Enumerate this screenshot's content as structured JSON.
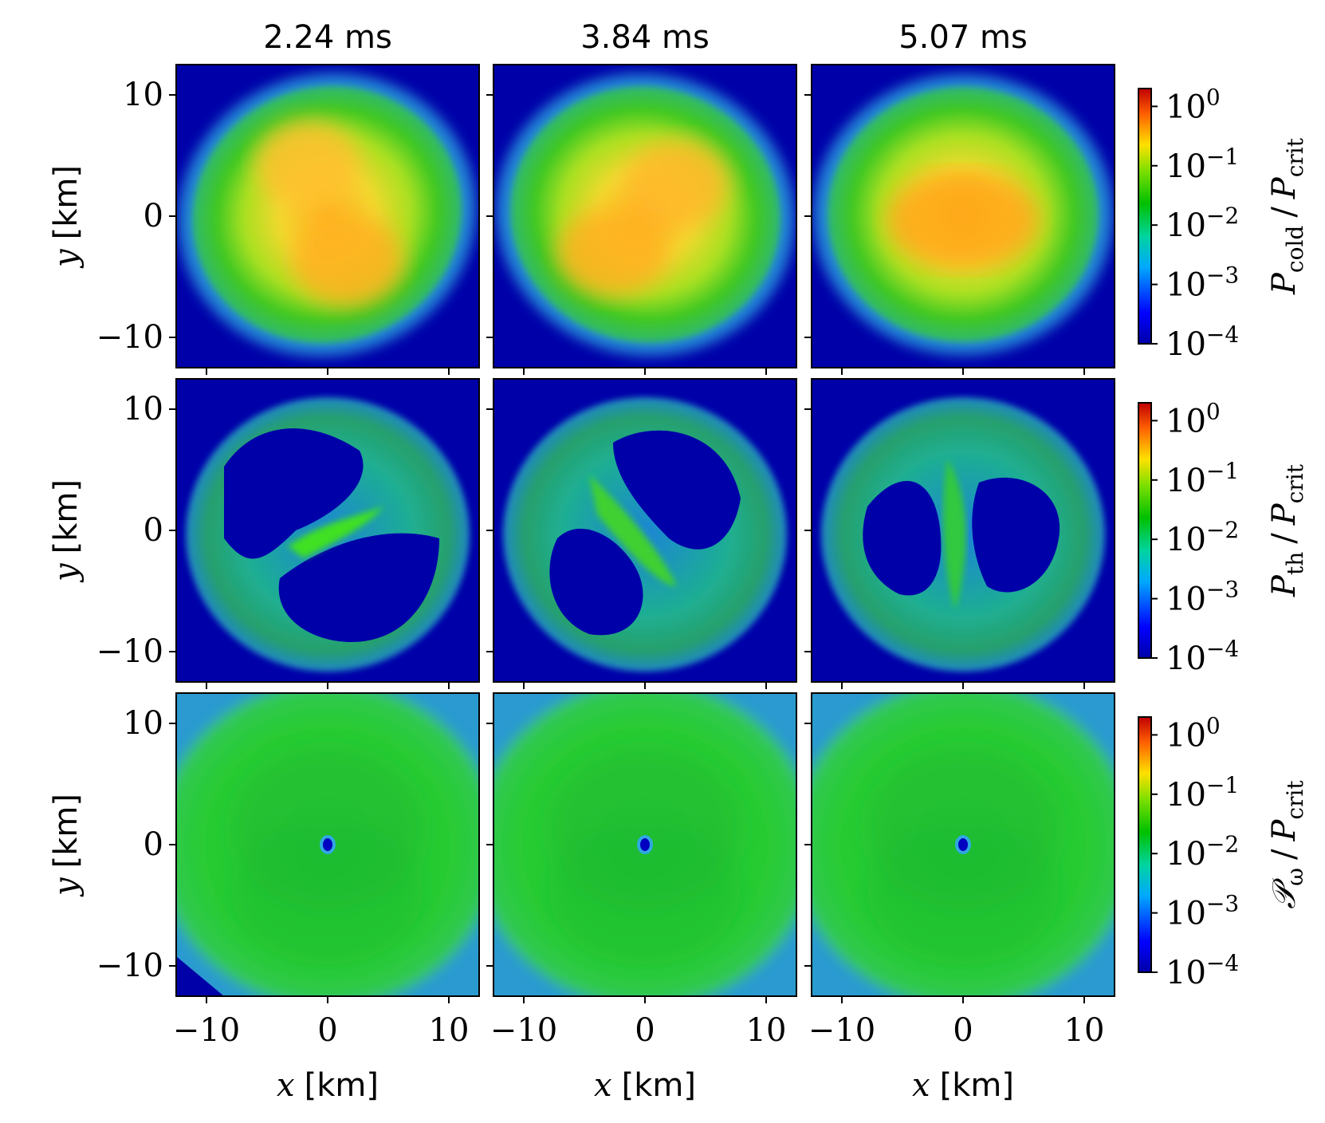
{
  "chart_data": {
    "type": "heatmap",
    "column_titles": [
      "2.24 ms",
      "3.84 ms",
      "5.07 ms"
    ],
    "rows": [
      {
        "colorbar_label": "P_cold / P_crit",
        "colorbar_label_main": "P",
        "colorbar_label_sub": "cold",
        "colorbar_label_den": "P",
        "colorbar_label_den_sub": "crit"
      },
      {
        "colorbar_label": "P_th / P_crit",
        "colorbar_label_main": "P",
        "colorbar_label_sub": "th",
        "colorbar_label_den": "P",
        "colorbar_label_den_sub": "crit"
      },
      {
        "colorbar_label": "𝒫_ω / P_crit",
        "colorbar_label_main": "𝒫",
        "colorbar_label_sub": "ω",
        "colorbar_label_den": "P",
        "colorbar_label_den_sub": "crit"
      }
    ],
    "xlabel": "x [km]",
    "xlabel_var": "x",
    "xlabel_unit": "[km]",
    "ylabel": "y [km]",
    "ylabel_var": "y",
    "ylabel_unit": "[km]",
    "xlim": [
      -12.5,
      12.5
    ],
    "ylim": [
      -12.5,
      12.5
    ],
    "ticks": [
      -10,
      0,
      10
    ],
    "tick_labels": [
      "−10",
      "0",
      "10"
    ],
    "colorbar": {
      "scale": "log",
      "range": [
        0.0001,
        2
      ],
      "colormap": "jet",
      "ticks": [
        0.0001,
        0.001,
        0.01,
        0.1,
        1
      ],
      "tick_exponents": [
        "−4",
        "−3",
        "−2",
        "−1",
        "0"
      ],
      "tick_base": "10"
    },
    "panels": [
      {
        "row": 0,
        "col": 0,
        "time": "2.24 ms",
        "structure": "two-lobed core",
        "core_level": 0.12,
        "envelope_level": 0.003
      },
      {
        "row": 0,
        "col": 1,
        "time": "3.84 ms",
        "structure": "two-lobed core",
        "core_level": 0.12,
        "envelope_level": 0.003
      },
      {
        "row": 0,
        "col": 2,
        "time": "5.07 ms",
        "structure": "merged core",
        "core_level": 0.15,
        "envelope_level": 0.003
      },
      {
        "row": 1,
        "col": 0,
        "time": "2.24 ms",
        "structure": "shear layer with voids",
        "core_level": 0.008,
        "envelope_level": 0.001
      },
      {
        "row": 1,
        "col": 1,
        "time": "3.84 ms",
        "structure": "spiral shear layer",
        "core_level": 0.008,
        "envelope_level": 0.001
      },
      {
        "row": 1,
        "col": 2,
        "time": "5.07 ms",
        "structure": "ring with central void",
        "core_level": 0.008,
        "envelope_level": 0.001
      },
      {
        "row": 2,
        "col": 0,
        "time": "2.24 ms",
        "structure": "uniform disk",
        "core_level": 0.006,
        "envelope_level": 0.002
      },
      {
        "row": 2,
        "col": 1,
        "time": "3.84 ms",
        "structure": "uniform disk",
        "core_level": 0.006,
        "envelope_level": 0.002
      },
      {
        "row": 2,
        "col": 2,
        "time": "5.07 ms",
        "structure": "uniform disk",
        "core_level": 0.006,
        "envelope_level": 0.002
      }
    ]
  }
}
